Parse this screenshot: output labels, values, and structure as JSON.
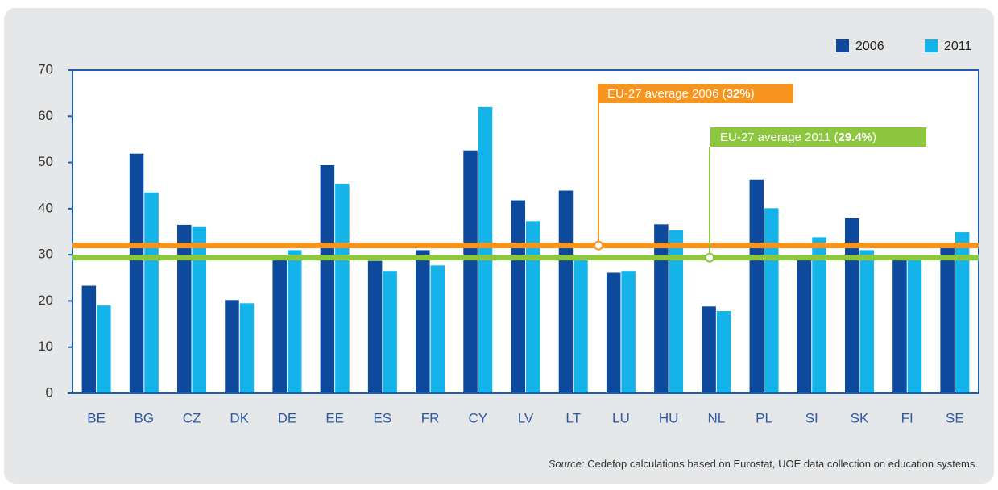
{
  "chart_data": {
    "type": "bar",
    "categories": [
      "BE",
      "BG",
      "CZ",
      "DK",
      "DE",
      "EE",
      "ES",
      "FR",
      "CY",
      "LV",
      "LT",
      "LU",
      "HU",
      "NL",
      "PL",
      "SI",
      "SK",
      "FI",
      "SE"
    ],
    "series": [
      {
        "name": "2006",
        "color": "#0d4a9e",
        "values": [
          23.3,
          51.9,
          36.5,
          20.2,
          30,
          49.4,
          28.7,
          31,
          52.6,
          41.8,
          43.9,
          26.1,
          36.6,
          18.8,
          46.3,
          30,
          37.9,
          28.8,
          32.2
        ]
      },
      {
        "name": "2011",
        "color": "#14b4ea",
        "values": [
          19,
          43.5,
          36,
          19.5,
          31,
          45.4,
          26.5,
          27.7,
          62,
          37.3,
          28.8,
          26.5,
          35.3,
          17.8,
          40.1,
          33.8,
          31,
          28.8,
          34.9
        ]
      }
    ],
    "ylim": [
      0,
      70
    ],
    "yticks": [
      0,
      10,
      20,
      30,
      40,
      50,
      60,
      70
    ],
    "legend": "top-right",
    "reference_lines": [
      {
        "text": "EU-27 average 2006 (",
        "value": 32,
        "value_label": "32%",
        "text_end": ")",
        "color": "#f7941d"
      },
      {
        "text": "EU-27 average 2011 (",
        "value": 29.4,
        "value_label": "29.4%",
        "text_end": ")",
        "color": "#8dc63f"
      }
    ],
    "source_label": "Source:",
    "source": " Cedefop calculations based on Eurostat, UOE data collection on education systems."
  }
}
